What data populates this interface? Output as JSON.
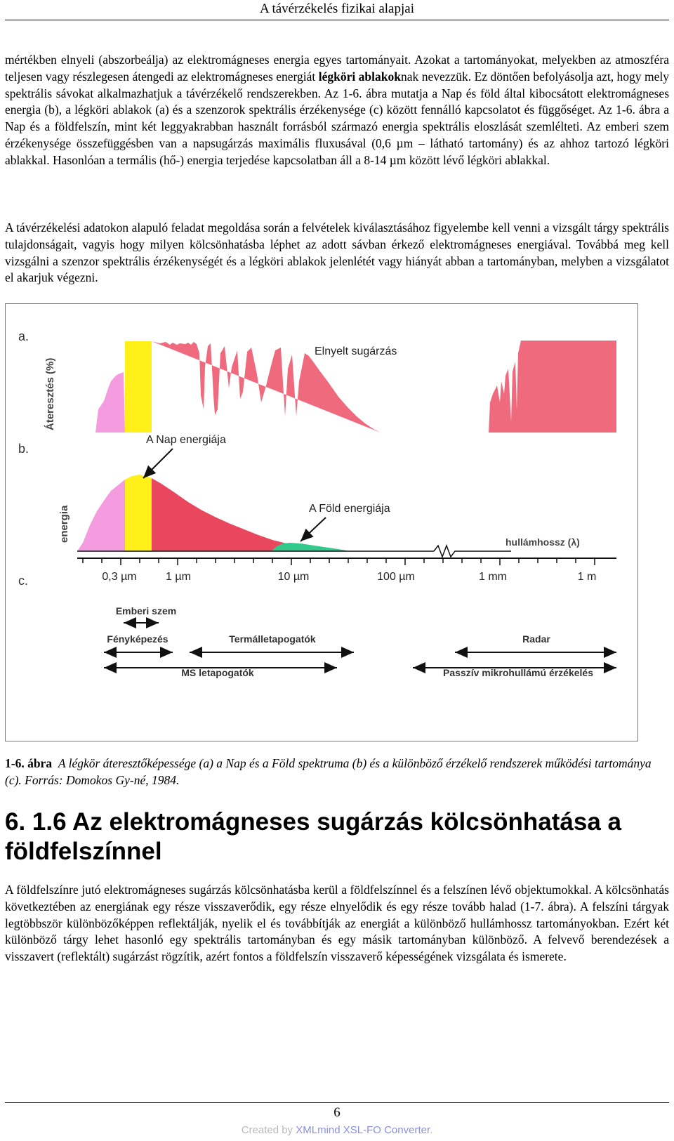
{
  "header": {
    "title": "A távérzékelés fizikai alapjai"
  },
  "paragraph1": {
    "a": "mértékben elnyeli (abszorbeálja) az elektromágneses energia egyes tartományait. Azokat a tartományokat, melyekben az atmoszféra teljesen vagy részlegesen átengedi az elektromágneses energiát ",
    "bold": "légköri ablakok",
    "b": "nak nevezzük. Ez döntően befolyásolja azt, hogy mely spektrális sávokat alkalmazhatjuk a távérzékelő rendszerekben. Az 1-6. ábra mutatja a Nap és föld által kibocsátott elektromágneses energia (b), a légköri ablakok (a) és a szenzorok spektrális érzékenysége (c) között fennálló kapcsolatot és függőséget. Az 1-6. ábra a Nap és a földfelszín, mint két leggyakrabban használt forrásból származó energia spektrális eloszlását szemlélteti. Az emberi szem érzékenysége összefüggésben van a napsugárzás maximális fluxusával (0,6 µm – látható tartomány) és az ahhoz tartozó légköri ablakkal. Hasonlóan a termális (hő-) energia terjedése kapcsolatban áll a 8-14 µm között lévő légköri ablakkal."
  },
  "paragraph2": "A távérzékelési adatokon alapuló feladat megoldása során a felvételek kiválasztásához figyelembe kell venni a vizsgált tárgy spektrális tulajdonságait, vagyis hogy milyen kölcsönhatásba léphet az adott sávban érkező elektromágneses energiával. Továbbá meg kell vizsgálni a szenzor spektrális érzékenységét és a légköri ablakok jelenlétét vagy hiányát abban a tartományban, melyben a vizsgálatot el akarjuk végezni.",
  "figure": {
    "panel_a": "a.",
    "panel_b": "b.",
    "panel_c": "c.",
    "ylabel_a": "Áteresztés (%)",
    "ylabel_b": "energia",
    "absorbed": "Elnyelt sugárzás",
    "sun_energy": "A Nap energiája",
    "earth_energy": "A Föld energiája",
    "wavelength": "hullámhossz (λ)",
    "ticks": [
      "0,3 µm",
      "1 µm",
      "10 µm",
      "100 µm",
      "1 mm",
      "1 m"
    ],
    "sensors": {
      "human_eye": "Emberi szem",
      "photography": "Fényképezés",
      "thermal": "Termálletapogatók",
      "radar": "Radar",
      "ms": "MS letapogatók",
      "passive": "Passzív mikrohullámú érzékelés"
    },
    "colors": {
      "absorbed": "#f06a7e",
      "uv": "#f59be0",
      "visible": "#fff01a",
      "sun_curve": "#e8475e",
      "earth_curve": "#33c98a"
    }
  },
  "caption": {
    "label": "1-6. ábra",
    "text": "A légkör áteresztőképessége (a) a Nap és a Föld spektruma (b) és a különböző érzékelő rendszerek működési tartománya (c). Forrás: Domokos Gy-né, 1984."
  },
  "section": {
    "title": "6. 1.6 Az elektromágneses sugárzás kölcsönhatása a földfelszínnel"
  },
  "paragraph3": "A földfelszínre jutó elektromágneses sugárzás kölcsönhatásba kerül a földfelszínnel és a felszínen lévő objektumokkal. A kölcsönhatás következtében az energiának egy része visszaverődik, egy része elnyelődik és egy része tovább halad (1-7. ábra). A felszíni tárgyak legtöbbször különbözőképpen reflektálják, nyelik el és továbbítják az energiát a különböző hullámhossz tartományokban. Ezért két különböző tárgy lehet hasonló egy spektrális tartományban és egy másik tartományban különböző. A felvevő berendezések a visszavert (reflektált) sugárzást rögzítik, azért fontos a földfelszín visszaverő képességének vizsgálata és ismerete.",
  "footer": {
    "page": "6",
    "created_prefix": "Created by ",
    "brand": "XMLmind XSL-FO Converter",
    "suffix": "."
  }
}
